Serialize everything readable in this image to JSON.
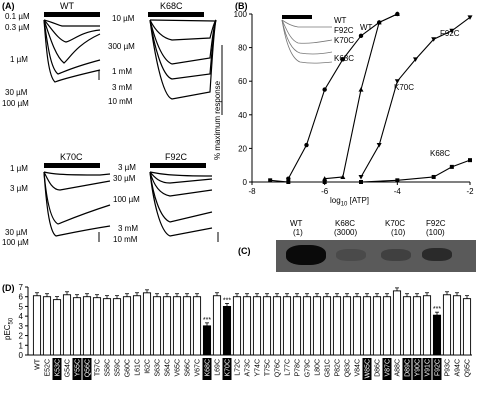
{
  "panels": {
    "a": "(A)",
    "b": "(B)",
    "c": "(C)",
    "d": "(D)"
  },
  "panel_a": {
    "traces": [
      {
        "title": "WT",
        "concentrations": [
          "0.1 µM",
          "0.3 µM",
          "1 µM",
          "30 µM",
          "100 µM"
        ]
      },
      {
        "title": "K68C",
        "concentrations": [
          "10 µM",
          "300 µM",
          "1 mM",
          "3 mM",
          "10 mM"
        ]
      },
      {
        "title": "K70C",
        "concentrations": [
          "1 µM",
          "3 µM",
          "30 µM",
          "100 µM"
        ]
      },
      {
        "title": "F92C",
        "concentrations": [
          "3 µM",
          "30 µM",
          "100 µM",
          "3 mM",
          "10 mM"
        ]
      }
    ]
  },
  "panel_b": {
    "ylabel": "% maximum response",
    "xlabel": "log10 [ATP]",
    "xlabel_main": "log",
    "xlabel_sub": "10",
    "xlabel_rest": " [ATP]",
    "legend": [
      "WT",
      "F92C",
      "K70C",
      "K68C"
    ],
    "curve_labels": {
      "wt": "WT",
      "f92c": "F92C",
      "k70c": "K70C",
      "k68c": "K68C"
    }
  },
  "panel_c": {
    "lanes": [
      {
        "name": "WT",
        "note": "(1)"
      },
      {
        "name": "K68C",
        "note": "(3000)"
      },
      {
        "name": "K70C",
        "note": "(10)"
      },
      {
        "name": "F92C",
        "note": "(100)"
      }
    ]
  },
  "panel_d": {
    "ylabel": "pEC50",
    "ylabel_main": "pEC",
    "ylabel_sub": "50",
    "significance": "***"
  },
  "chart_data": [
    {
      "type": "line",
      "title": "",
      "xlabel": "log10 [ATP]",
      "ylabel": "% maximum response",
      "xlim": [
        -8,
        -2
      ],
      "ylim": [
        0,
        100
      ],
      "xticks": [
        -8,
        -6,
        -4,
        -2
      ],
      "yticks": [
        0,
        20,
        40,
        60,
        80,
        100
      ],
      "series": [
        {
          "name": "WT",
          "x": [
            -7.0,
            -6.5,
            -6.0,
            -5.5,
            -5.0,
            -4.5,
            -4.0
          ],
          "y": [
            2,
            22,
            55,
            73,
            87,
            95,
            100
          ]
        },
        {
          "name": "K70C",
          "x": [
            -6.0,
            -5.5,
            -5.0,
            -4.5,
            -4.0
          ],
          "y": [
            2,
            3,
            55,
            95,
            100
          ]
        },
        {
          "name": "F92C",
          "x": [
            -5.0,
            -4.5,
            -4.0,
            -3.5,
            -3.0,
            -2.5,
            -2.0
          ],
          "y": [
            3,
            22,
            60,
            73,
            85,
            90,
            98
          ]
        },
        {
          "name": "K68C",
          "x": [
            -7.5,
            -7.0,
            -6.0,
            -5.0,
            -4.0,
            -3.0,
            -2.5,
            -2.0
          ],
          "y": [
            1,
            0,
            0,
            0,
            1,
            3,
            9,
            13
          ]
        }
      ]
    },
    {
      "type": "bar",
      "title": "",
      "xlabel": "",
      "ylabel": "pEC50",
      "ylim": [
        0,
        7
      ],
      "yticks": [
        0,
        1,
        2,
        3,
        4,
        5,
        6,
        7
      ],
      "categories": [
        "WT",
        "E52C",
        "K53C",
        "G54C",
        "Y55C",
        "Q56C",
        "T57C",
        "S58C",
        "S59C",
        "G60C",
        "L61C",
        "I62C",
        "S63C",
        "S64C",
        "V65C",
        "S66C",
        "V67C",
        "K68C",
        "L69C",
        "K70C",
        "L72C",
        "A73C",
        "Y74C",
        "T75C",
        "Q76C",
        "L77C",
        "P78C",
        "G79C",
        "L80C",
        "G81C",
        "P82C",
        "Q83C",
        "V84C",
        "W85C",
        "D86C",
        "V87C",
        "A88C",
        "D89C",
        "Y90C",
        "V91C",
        "F92C",
        "P93C",
        "A94C",
        "Q95C"
      ],
      "highlighted": [
        "K53C",
        "Y55C",
        "Q56C",
        "K68C",
        "K70C",
        "W85C",
        "V87C",
        "D89C",
        "Y90C",
        "V91C",
        "F92C"
      ],
      "values": [
        6.1,
        6.0,
        5.7,
        6.2,
        5.9,
        6.0,
        5.9,
        5.8,
        5.8,
        6.0,
        6.1,
        6.4,
        6.0,
        6.0,
        6.0,
        6.0,
        6.0,
        3.0,
        6.1,
        5.0,
        6.0,
        6.0,
        6.0,
        6.0,
        6.0,
        6.0,
        6.0,
        6.0,
        6.0,
        6.0,
        6.0,
        6.0,
        6.0,
        6.0,
        6.0,
        6.0,
        6.6,
        6.0,
        6.0,
        6.1,
        4.1,
        6.2,
        6.1,
        5.8
      ],
      "significant": [
        "K68C",
        "K70C",
        "F92C"
      ]
    }
  ]
}
